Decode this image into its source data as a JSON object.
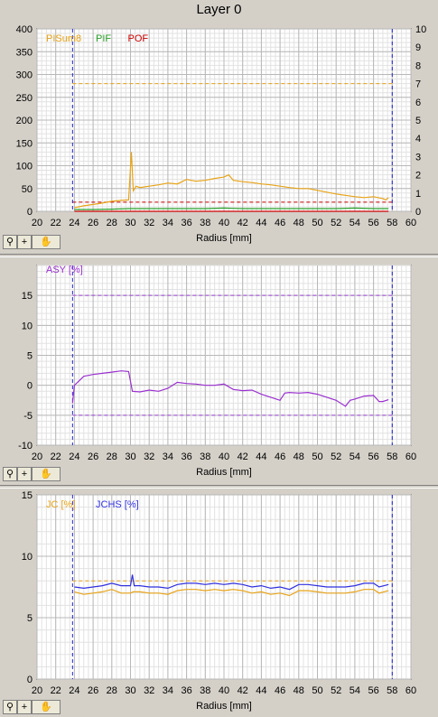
{
  "window": {
    "title": "Layer 0"
  },
  "toolbar": {
    "zoom_icon": "magnifier-icon",
    "pan_icon": "hand-icon",
    "plus_label": "+"
  },
  "chart_data": [
    {
      "type": "line",
      "title": "",
      "xlabel": "Radius [mm]",
      "ylabel": "",
      "xlim": [
        20,
        60
      ],
      "ylim": [
        0,
        400
      ],
      "y2lim": [
        0,
        10
      ],
      "xticks": [
        20,
        22,
        24,
        26,
        28,
        30,
        32,
        34,
        36,
        38,
        40,
        42,
        44,
        46,
        48,
        50,
        52,
        54,
        56,
        58,
        60
      ],
      "yticks": [
        0,
        50,
        100,
        150,
        200,
        250,
        300,
        350,
        400
      ],
      "y2ticks": [
        0,
        1,
        2,
        3,
        4,
        5,
        6,
        7,
        8,
        9,
        10
      ],
      "grid": true,
      "legend": [
        "PISum8",
        "PIF",
        "POF"
      ],
      "vlines": [
        23.8,
        58.0
      ],
      "hlines": [
        {
          "y": 280,
          "color": "#e8a317",
          "style": "dashed"
        },
        {
          "y": 20,
          "color": "#cc0000",
          "style": "dashed"
        }
      ],
      "series": [
        {
          "name": "PISum8",
          "color": "#e8a317",
          "axis": "left",
          "x": [
            24,
            25,
            26,
            27,
            28,
            29,
            29.8,
            30.1,
            30.3,
            30.6,
            31,
            32,
            33,
            34,
            35,
            36,
            37,
            38,
            39,
            40,
            40.5,
            41,
            42,
            43,
            44,
            45,
            46,
            47,
            48,
            49,
            50,
            51,
            52,
            53,
            54,
            55,
            56,
            57,
            57.3,
            57.6
          ],
          "y": [
            8,
            12,
            15,
            18,
            22,
            24,
            25,
            130,
            45,
            55,
            52,
            55,
            58,
            62,
            60,
            70,
            66,
            68,
            72,
            75,
            80,
            68,
            65,
            63,
            60,
            58,
            55,
            52,
            50,
            50,
            46,
            42,
            38,
            35,
            32,
            30,
            32,
            28,
            25,
            30
          ]
        },
        {
          "name": "PIF",
          "color": "#2ca02c",
          "axis": "right",
          "x": [
            24,
            26,
            28,
            30,
            32,
            34,
            36,
            38,
            40,
            42,
            44,
            46,
            48,
            50,
            52,
            54,
            56,
            57.6
          ],
          "y": [
            0.1,
            0.1,
            0.12,
            0.15,
            0.15,
            0.15,
            0.15,
            0.15,
            0.18,
            0.15,
            0.15,
            0.15,
            0.15,
            0.15,
            0.15,
            0.18,
            0.15,
            0.15
          ]
        },
        {
          "name": "POF",
          "color": "#cc0000",
          "axis": "right",
          "x": [
            24,
            57.6
          ],
          "y": [
            0,
            0
          ]
        }
      ]
    },
    {
      "type": "line",
      "title": "",
      "xlabel": "Radius [mm]",
      "ylabel": "",
      "xlim": [
        20,
        60
      ],
      "ylim": [
        -10,
        20
      ],
      "xticks": [
        20,
        22,
        24,
        26,
        28,
        30,
        32,
        34,
        36,
        38,
        40,
        42,
        44,
        46,
        48,
        50,
        52,
        54,
        56,
        58,
        60
      ],
      "yticks": [
        -10,
        -5,
        0,
        5,
        10,
        15
      ],
      "grid": true,
      "legend": [
        "ASY [%]"
      ],
      "vlines": [
        23.8,
        58.0
      ],
      "hlines": [
        {
          "y": 15,
          "color": "#a040e0",
          "style": "dashed"
        },
        {
          "y": -5,
          "color": "#a040e0",
          "style": "dashed"
        }
      ],
      "series": [
        {
          "name": "ASY [%]",
          "color": "#9b30d0",
          "x": [
            23.8,
            24,
            25,
            26,
            27,
            28,
            29,
            29.8,
            30.2,
            31,
            32,
            33,
            34,
            35,
            36,
            37,
            38,
            39,
            40,
            41,
            42,
            43,
            44,
            45,
            46,
            46.5,
            47,
            48,
            49,
            50,
            51,
            52,
            53,
            53.5,
            54,
            55,
            56,
            56.6,
            57,
            57.6
          ],
          "y": [
            -3,
            0,
            1.5,
            1.8,
            2.0,
            2.2,
            2.4,
            2.3,
            -1,
            -1.1,
            -0.8,
            -1,
            -0.5,
            0.5,
            0.3,
            0.2,
            0,
            0,
            0.2,
            -0.7,
            -0.9,
            -0.8,
            -1.5,
            -2,
            -2.5,
            -1.3,
            -1.2,
            -1.3,
            -1.2,
            -1.5,
            -2,
            -2.5,
            -3.5,
            -2.5,
            -2.3,
            -1.8,
            -1.7,
            -2.7,
            -2.7,
            -2.4
          ]
        }
      ]
    },
    {
      "type": "line",
      "title": "",
      "xlabel": "Radius [mm]",
      "ylabel": "",
      "xlim": [
        20,
        60
      ],
      "ylim": [
        0,
        15
      ],
      "xticks": [
        20,
        22,
        24,
        26,
        28,
        30,
        32,
        34,
        36,
        38,
        40,
        42,
        44,
        46,
        48,
        50,
        52,
        54,
        56,
        58,
        60
      ],
      "yticks": [
        0,
        5,
        10,
        15
      ],
      "grid": true,
      "legend": [
        "JC [%]",
        "JCHS [%]"
      ],
      "vlines": [
        23.8,
        58.0
      ],
      "hlines": [
        {
          "y": 8,
          "color": "#e8a317",
          "style": "dashed"
        }
      ],
      "series": [
        {
          "name": "JC [%]",
          "color": "#e8a317",
          "x": [
            24,
            25,
            26,
            27,
            28,
            29,
            30,
            30.3,
            31,
            32,
            33,
            34,
            35,
            36,
            37,
            38,
            39,
            40,
            41,
            42,
            43,
            44,
            45,
            46,
            47,
            48,
            49,
            50,
            51,
            52,
            53,
            54,
            55,
            56,
            56.6,
            57.6
          ],
          "y": [
            7.1,
            6.9,
            7.0,
            7.1,
            7.3,
            7.0,
            7.0,
            7.1,
            7.1,
            7.0,
            7.0,
            6.9,
            7.2,
            7.3,
            7.3,
            7.2,
            7.3,
            7.2,
            7.3,
            7.2,
            7.0,
            7.1,
            6.9,
            7.0,
            6.8,
            7.2,
            7.2,
            7.1,
            7.0,
            7.0,
            7.0,
            7.1,
            7.3,
            7.3,
            7.0,
            7.2
          ]
        },
        {
          "name": "JCHS [%]",
          "color": "#3030e0",
          "x": [
            24,
            25,
            26,
            27,
            28,
            29,
            30,
            30.2,
            30.4,
            31,
            32,
            33,
            34,
            35,
            36,
            37,
            38,
            39,
            40,
            41,
            42,
            43,
            44,
            45,
            46,
            47,
            48,
            49,
            50,
            51,
            52,
            53,
            54,
            55,
            56,
            56.6,
            57.6
          ],
          "y": [
            7.5,
            7.4,
            7.5,
            7.6,
            7.8,
            7.6,
            7.6,
            8.5,
            7.6,
            7.6,
            7.5,
            7.5,
            7.4,
            7.7,
            7.8,
            7.8,
            7.7,
            7.8,
            7.7,
            7.8,
            7.7,
            7.5,
            7.6,
            7.4,
            7.5,
            7.3,
            7.7,
            7.7,
            7.6,
            7.5,
            7.5,
            7.5,
            7.6,
            7.8,
            7.8,
            7.5,
            7.7
          ]
        }
      ]
    }
  ]
}
